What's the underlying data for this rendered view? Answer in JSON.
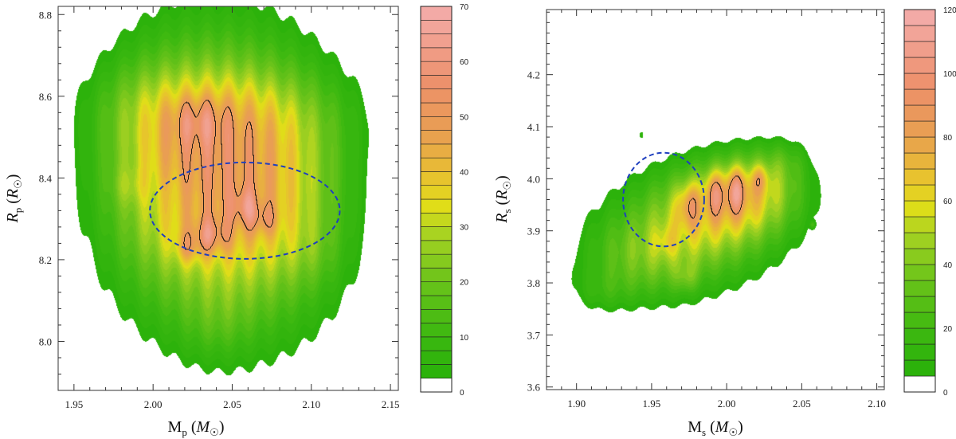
{
  "chart_data": [
    {
      "type": "heatmap",
      "subtype": "filled-contour-density",
      "x_label": {
        "main": "M",
        "sub": "p",
        "unit_open": " (",
        "unit": "M",
        "unit_sub": "☉",
        "unit_close": ")"
      },
      "y_label": {
        "main": "R",
        "sub": "p",
        "unit_open": " (",
        "unit": "R",
        "unit_sub": "☉",
        "unit_close": ")"
      },
      "xlim": [
        1.94,
        2.155
      ],
      "ylim": [
        7.88,
        8.82
      ],
      "x_ticks": [
        "1.95",
        "2.00",
        "2.05",
        "2.10",
        "2.15"
      ],
      "x_tick_values": [
        1.95,
        2.0,
        2.05,
        2.1,
        2.15
      ],
      "y_ticks": [
        "8.0",
        "8.2",
        "8.4",
        "8.6",
        "8.8"
      ],
      "y_tick_values": [
        8.0,
        8.2,
        8.4,
        8.6,
        8.8
      ],
      "colorbar": {
        "min": 0,
        "max": 70,
        "levels": 28,
        "tick_values": [
          0,
          10,
          20,
          30,
          40,
          50,
          60,
          70
        ],
        "tick_labels": [
          "0",
          "10",
          "20",
          "30",
          "40",
          "50",
          "60",
          "70"
        ]
      },
      "ellipse": {
        "cx": 2.058,
        "cy": 8.32,
        "rx": 0.06,
        "ry": 0.118,
        "color": "#1f3fbf"
      },
      "blobs": [
        {
          "x": 2.03,
          "y": 8.4,
          "sx": 0.04,
          "sy": 0.24,
          "w": 1.0
        },
        {
          "x": 2.06,
          "y": 8.38,
          "sx": 0.04,
          "sy": 0.24,
          "w": 0.9
        },
        {
          "x": 2.0,
          "y": 8.42,
          "sx": 0.03,
          "sy": 0.2,
          "w": 0.55
        },
        {
          "x": 2.09,
          "y": 8.36,
          "sx": 0.03,
          "sy": 0.2,
          "w": 0.5
        },
        {
          "x": 2.05,
          "y": 8.56,
          "sx": 0.06,
          "sy": 0.08,
          "w": 0.3
        },
        {
          "x": 2.028,
          "y": 8.54,
          "sx": 0.012,
          "sy": 0.04,
          "w": 0.4
        },
        {
          "x": 2.036,
          "y": 8.26,
          "sx": 0.008,
          "sy": 0.03,
          "w": 0.6
        },
        {
          "x": 2.022,
          "y": 8.23,
          "sx": 0.006,
          "sy": 0.025,
          "w": 0.4
        },
        {
          "x": 2.058,
          "y": 8.33,
          "sx": 0.006,
          "sy": 0.03,
          "w": 0.5
        },
        {
          "x": 2.07,
          "y": 8.3,
          "sx": 0.006,
          "sy": 0.025,
          "w": 0.4
        },
        {
          "x": 2.01,
          "y": 8.36,
          "sx": 0.015,
          "sy": 0.05,
          "w": -0.15
        },
        {
          "x": 1.985,
          "y": 8.38,
          "sx": 0.008,
          "sy": 0.03,
          "w": 0.2
        },
        {
          "x": 2.04,
          "y": 8.04,
          "sx": 0.015,
          "sy": 0.06,
          "w": 0.2
        },
        {
          "x": 1.99,
          "y": 8.6,
          "sx": 0.02,
          "sy": 0.07,
          "w": 0.15
        },
        {
          "x": 2.1,
          "y": 8.22,
          "sx": 0.012,
          "sy": 0.06,
          "w": 0.15
        }
      ],
      "peak_value": 70,
      "contour_level": 52
    },
    {
      "type": "heatmap",
      "subtype": "filled-contour-density",
      "x_label": {
        "main": "M",
        "sub": "s",
        "unit_open": " (",
        "unit": "M",
        "unit_sub": "☉",
        "unit_close": ")"
      },
      "y_label": {
        "main": "R",
        "sub": "s",
        "unit_open": " (",
        "unit": "R",
        "unit_sub": "☉",
        "unit_close": ")"
      },
      "xlim": [
        1.88,
        2.105
      ],
      "ylim": [
        3.595,
        4.325
      ],
      "x_ticks": [
        "1.90",
        "1.95",
        "2.00",
        "2.05",
        "2.10"
      ],
      "x_tick_values": [
        1.9,
        1.95,
        2.0,
        2.05,
        2.1
      ],
      "y_ticks": [
        "3.6",
        "3.7",
        "3.8",
        "3.9",
        "4.0",
        "4.1",
        "4.2"
      ],
      "y_tick_values": [
        3.6,
        3.7,
        3.8,
        3.9,
        4.0,
        4.1,
        4.2
      ],
      "colorbar": {
        "min": 0,
        "max": 120,
        "levels": 24,
        "tick_values": [
          0,
          20,
          40,
          60,
          80,
          100,
          120
        ],
        "tick_labels": [
          "0",
          "20",
          "40",
          "60",
          "80",
          "100",
          "120"
        ]
      },
      "ellipse": {
        "cx": 1.958,
        "cy": 3.96,
        "rx": 0.027,
        "ry": 0.09,
        "color": "#1f3fbf"
      },
      "blobs": [
        {
          "x": 1.975,
          "y": 3.9,
          "sx": 0.04,
          "sy": 0.08,
          "w": 0.8
        },
        {
          "x": 2.005,
          "y": 3.96,
          "sx": 0.03,
          "sy": 0.06,
          "w": 0.9
        },
        {
          "x": 1.94,
          "y": 3.84,
          "sx": 0.03,
          "sy": 0.06,
          "w": 0.45
        },
        {
          "x": 2.025,
          "y": 4.0,
          "sx": 0.02,
          "sy": 0.05,
          "w": 0.4
        },
        {
          "x": 1.915,
          "y": 3.78,
          "sx": 0.015,
          "sy": 0.03,
          "w": 0.22
        },
        {
          "x": 2.04,
          "y": 4.04,
          "sx": 0.012,
          "sy": 0.03,
          "w": 0.22
        },
        {
          "x": 1.974,
          "y": 3.95,
          "sx": 0.005,
          "sy": 0.03,
          "w": 0.55
        },
        {
          "x": 1.992,
          "y": 3.975,
          "sx": 0.005,
          "sy": 0.03,
          "w": 0.5
        },
        {
          "x": 2.006,
          "y": 3.98,
          "sx": 0.005,
          "sy": 0.03,
          "w": 0.6
        },
        {
          "x": 2.022,
          "y": 4.0,
          "sx": 0.004,
          "sy": 0.018,
          "w": 0.4
        },
        {
          "x": 1.973,
          "y": 3.81,
          "sx": 0.005,
          "sy": 0.02,
          "w": 0.3
        },
        {
          "x": 1.959,
          "y": 3.88,
          "sx": 0.005,
          "sy": 0.02,
          "w": 0.25
        },
        {
          "x": 1.943,
          "y": 4.085,
          "sx": 0.0012,
          "sy": 0.006,
          "w": 0.4
        },
        {
          "x": 2.057,
          "y": 3.912,
          "sx": 0.0012,
          "sy": 0.005,
          "w": 0.4
        }
      ],
      "peak_value": 120,
      "contour_level": 90
    }
  ]
}
